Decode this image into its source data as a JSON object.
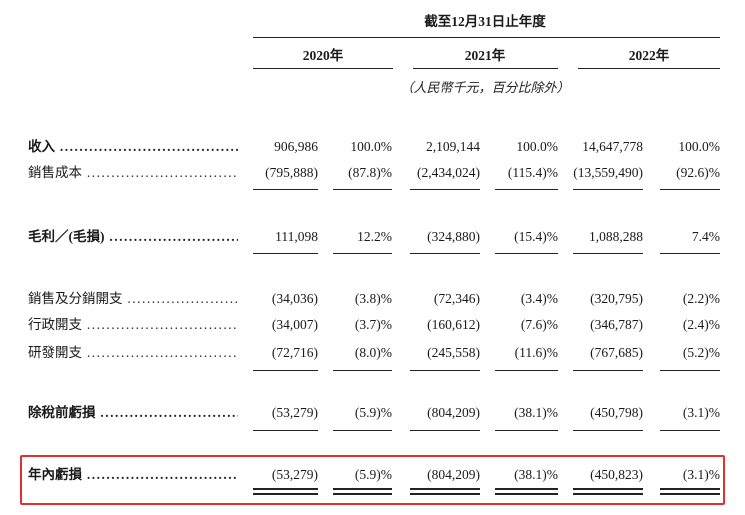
{
  "header": {
    "period_title": "截至12月31日止年度",
    "years": [
      "2020年",
      "2021年",
      "2022年"
    ],
    "unit_note": "（人民幣千元，百分比除外）"
  },
  "rows": [
    {
      "label": "收入",
      "bold": true,
      "cells": [
        "906,986",
        "100.0%",
        "2,109,144",
        "100.0%",
        "14,647,778",
        "100.0%"
      ]
    },
    {
      "label": "銷售成本",
      "bold": false,
      "cells": [
        "(795,888)",
        "(87.8)%",
        "(2,434,024)",
        "(115.4)%",
        "(13,559,490)",
        "(92.6)%"
      ]
    },
    {
      "label": "毛利／(毛損)",
      "bold": true,
      "cells": [
        "111,098",
        "12.2%",
        "(324,880)",
        "(15.4)%",
        "1,088,288",
        "7.4%"
      ]
    },
    {
      "label": "銷售及分銷開支",
      "bold": false,
      "cells": [
        "(34,036)",
        "(3.8)%",
        "(72,346)",
        "(3.4)%",
        "(320,795)",
        "(2.2)%"
      ]
    },
    {
      "label": "行政開支",
      "bold": false,
      "cells": [
        "(34,007)",
        "(3.7)%",
        "(160,612)",
        "(7.6)%",
        "(346,787)",
        "(2.4)%"
      ]
    },
    {
      "label": "研發開支",
      "bold": false,
      "cells": [
        "(72,716)",
        "(8.0)%",
        "(245,558)",
        "(11.6)%",
        "(767,685)",
        "(5.2)%"
      ]
    },
    {
      "label": "除稅前虧損",
      "bold": true,
      "cells": [
        "(53,279)",
        "(5.9)%",
        "(804,209)",
        "(38.1)%",
        "(450,798)",
        "(3.1)%"
      ]
    },
    {
      "label": "年內虧損",
      "bold": true,
      "cells": [
        "(53,279)",
        "(5.9)%",
        "(804,209)",
        "(38.1)%",
        "(450,823)",
        "(3.1)%"
      ]
    }
  ]
}
